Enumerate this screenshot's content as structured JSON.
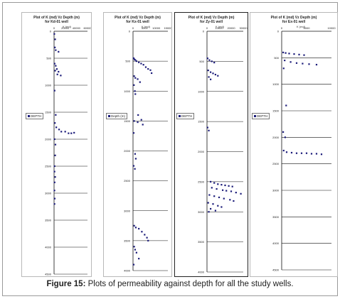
{
  "figure": {
    "caption_label": "Figure 15:",
    "caption_text": " Plots of permeability against depth for all the study wells."
  },
  "chart_data": [
    {
      "type": "scatter",
      "title_line1": "Plot of K (md) Vz Depth (m)",
      "title_line2": "for Kd-01 well",
      "xlabel": "K (md)",
      "xticks": [
        "0",
        "20000",
        "40000",
        "60000"
      ],
      "xlim": [
        0,
        60000
      ],
      "ylim": [
        0,
        4500
      ],
      "yticks": [
        0,
        500,
        1000,
        1500,
        2000,
        2500,
        3000,
        3500,
        4000,
        4500
      ],
      "y_inverted": true,
      "legend": "DEPTH",
      "series": [
        {
          "name": "DEPTH",
          "x": [
            500,
            2000,
            1500,
            3000,
            8000,
            1000,
            3000,
            5000,
            2000,
            8000,
            6000,
            12000,
            1000,
            3000,
            1500,
            4000,
            9000,
            13000,
            20000,
            26000,
            31000,
            36000,
            1000,
            2500,
            2000,
            1000,
            800,
            2000,
            1000,
            700,
            1200,
            800
          ],
          "y": [
            50,
            150,
            300,
            350,
            380,
            600,
            640,
            700,
            730,
            750,
            800,
            820,
            1100,
            1550,
            1700,
            1780,
            1820,
            1860,
            1860,
            1890,
            1890,
            1880,
            2000,
            2100,
            2300,
            2500,
            2600,
            2700,
            2800,
            2950,
            3100,
            3200
          ]
        }
      ]
    },
    {
      "type": "scatter",
      "title_line1": "Plot of K (md) Vz Depth (m)",
      "title_line2": "for Kx-01 well",
      "xlabel": "K (md)",
      "xticks": [
        "0",
        "5000",
        "10000",
        "15000"
      ],
      "xlim": [
        0,
        15000
      ],
      "ylim": [
        0,
        4000
      ],
      "yticks": [
        0,
        500,
        1000,
        1500,
        2000,
        2500,
        3000,
        3500,
        4000
      ],
      "y_inverted": true,
      "legend": "Depth (m)",
      "series": [
        {
          "name": "Depth (m)",
          "x": [
            300,
            600,
            1000,
            1500,
            2500,
            3500,
            4500,
            5500,
            6500,
            7500,
            8000,
            500,
            1000,
            2000,
            3000,
            400,
            800,
            1000,
            2200,
            3600,
            500,
            2000,
            4200,
            300,
            900,
            1200,
            300,
            800,
            500,
            1200,
            2500,
            3800,
            5000,
            6000,
            6500,
            500,
            900,
            1500,
            2500,
            300
          ],
          "y": [
            450,
            470,
            480,
            500,
            520,
            540,
            560,
            600,
            630,
            650,
            700,
            750,
            780,
            800,
            850,
            900,
            1000,
            1050,
            1400,
            1480,
            1500,
            1520,
            1560,
            1700,
            2050,
            2130,
            2250,
            2300,
            3250,
            3280,
            3300,
            3350,
            3400,
            3450,
            3500,
            3600,
            3650,
            3700,
            3800,
            3900
          ]
        }
      ]
    },
    {
      "type": "scatter",
      "title_line1": "Plot of K (md) Vz Depth (m)",
      "title_line2": "for Zy-01 well",
      "xlabel": "K (md)",
      "xticks": [
        "0",
        "10000",
        "20000",
        "30000"
      ],
      "xlim": [
        0,
        30000
      ],
      "ylim": [
        0,
        4000
      ],
      "yticks": [
        0,
        500,
        1000,
        1500,
        2000,
        2500,
        3000,
        3500,
        4000
      ],
      "y_inverted": true,
      "legend": "DEPTH",
      "series": [
        {
          "name": "DEPTH",
          "x": [
            500,
            2000,
            4000,
            6000,
            1000,
            3000,
            5000,
            7000,
            9000,
            1500,
            3000,
            500,
            1500,
            3000,
            6000,
            9000,
            12000,
            15000,
            18000,
            21000,
            4000,
            8000,
            13000,
            16000,
            20000,
            24000,
            28000,
            2000,
            6000,
            10000,
            14000,
            19000,
            22000,
            1000,
            5000,
            9000,
            12000,
            3000,
            7000,
            1500
          ],
          "y": [
            450,
            480,
            500,
            520,
            650,
            680,
            700,
            720,
            740,
            760,
            800,
            1600,
            1650,
            2500,
            2520,
            2540,
            2550,
            2560,
            2570,
            2580,
            2600,
            2620,
            2640,
            2650,
            2660,
            2680,
            2700,
            2720,
            2740,
            2760,
            2780,
            2800,
            2820,
            2850,
            2870,
            2900,
            2920,
            2950,
            2980,
            3000
          ]
        }
      ]
    },
    {
      "type": "scatter",
      "title_line1": "Plot of K (md) Vz Depth (m)",
      "title_line2": "for Ex-01 well",
      "xlabel": "K (md)",
      "xticks": [
        "0",
        "5000",
        "10000"
      ],
      "xlim": [
        0,
        10000
      ],
      "ylim": [
        0,
        4500
      ],
      "yticks": [
        0,
        500,
        1000,
        1500,
        2000,
        2500,
        3000,
        3500,
        4000,
        4500
      ],
      "y_inverted": true,
      "legend": "DEPTH",
      "series": [
        {
          "name": "DEPTH",
          "x": [
            300,
            800,
            1500,
            2500,
            3500,
            4500,
            600,
            1800,
            3000,
            4200,
            5500,
            7000,
            400,
            900,
            300,
            700,
            400,
            1000,
            2000,
            3000,
            4000,
            5000,
            6000,
            7000,
            8000
          ],
          "y": [
            400,
            410,
            420,
            430,
            440,
            450,
            550,
            580,
            600,
            610,
            620,
            630,
            700,
            1400,
            1900,
            2000,
            2250,
            2280,
            2290,
            2300,
            2300,
            2300,
            2310,
            2310,
            2320
          ]
        }
      ]
    }
  ]
}
